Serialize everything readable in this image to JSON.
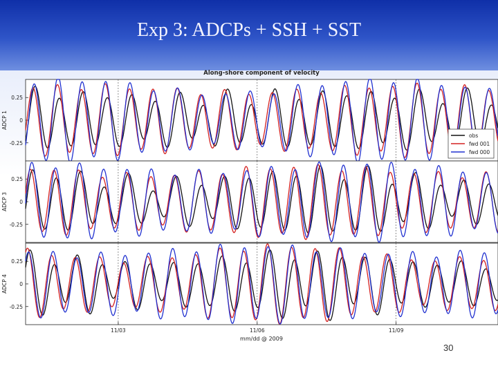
{
  "slide": {
    "title": "Exp 3: ADCPs + SSH + SST",
    "page_number": "30"
  },
  "chart_data": {
    "type": "line",
    "title": "Along-shore component of velocity",
    "xlabel": "mm/dd @ 2009",
    "x_ticks": [
      "11/03",
      "11/06",
      "11/09"
    ],
    "x_range_days": [
      1.0,
      11.2
    ],
    "legend": {
      "placement": "right",
      "entries": [
        "obs",
        "fwd 001",
        "fwd 000"
      ]
    },
    "colors": {
      "obs": "#111111",
      "fwd 001": "#d42020",
      "fwd 000": "#2030d0"
    },
    "panels": [
      {
        "ylabel": "ADCP 1",
        "y_ticks": [
          "0.25",
          "0",
          "-0.25"
        ],
        "ylim": [
          -0.45,
          0.45
        ]
      },
      {
        "ylabel": "ADCP 3",
        "y_ticks": [
          "0.25",
          "0",
          "-0.25"
        ],
        "ylim": [
          -0.45,
          0.45
        ]
      },
      {
        "ylabel": "ADCP 4",
        "y_ticks": [
          "0.25",
          "0",
          "-0.25"
        ],
        "ylim": [
          -0.45,
          0.45
        ]
      }
    ],
    "series_model": {
      "description": "semidiurnal oscillations",
      "period_days": 0.5175,
      "obs": {
        "amplitude": 0.27,
        "phase_days": 0.05
      },
      "fwd 001": {
        "amplitude": 0.34,
        "phase_days": 0.0
      },
      "fwd 000": {
        "amplitude": 0.37,
        "phase_days": 0.02
      }
    }
  }
}
